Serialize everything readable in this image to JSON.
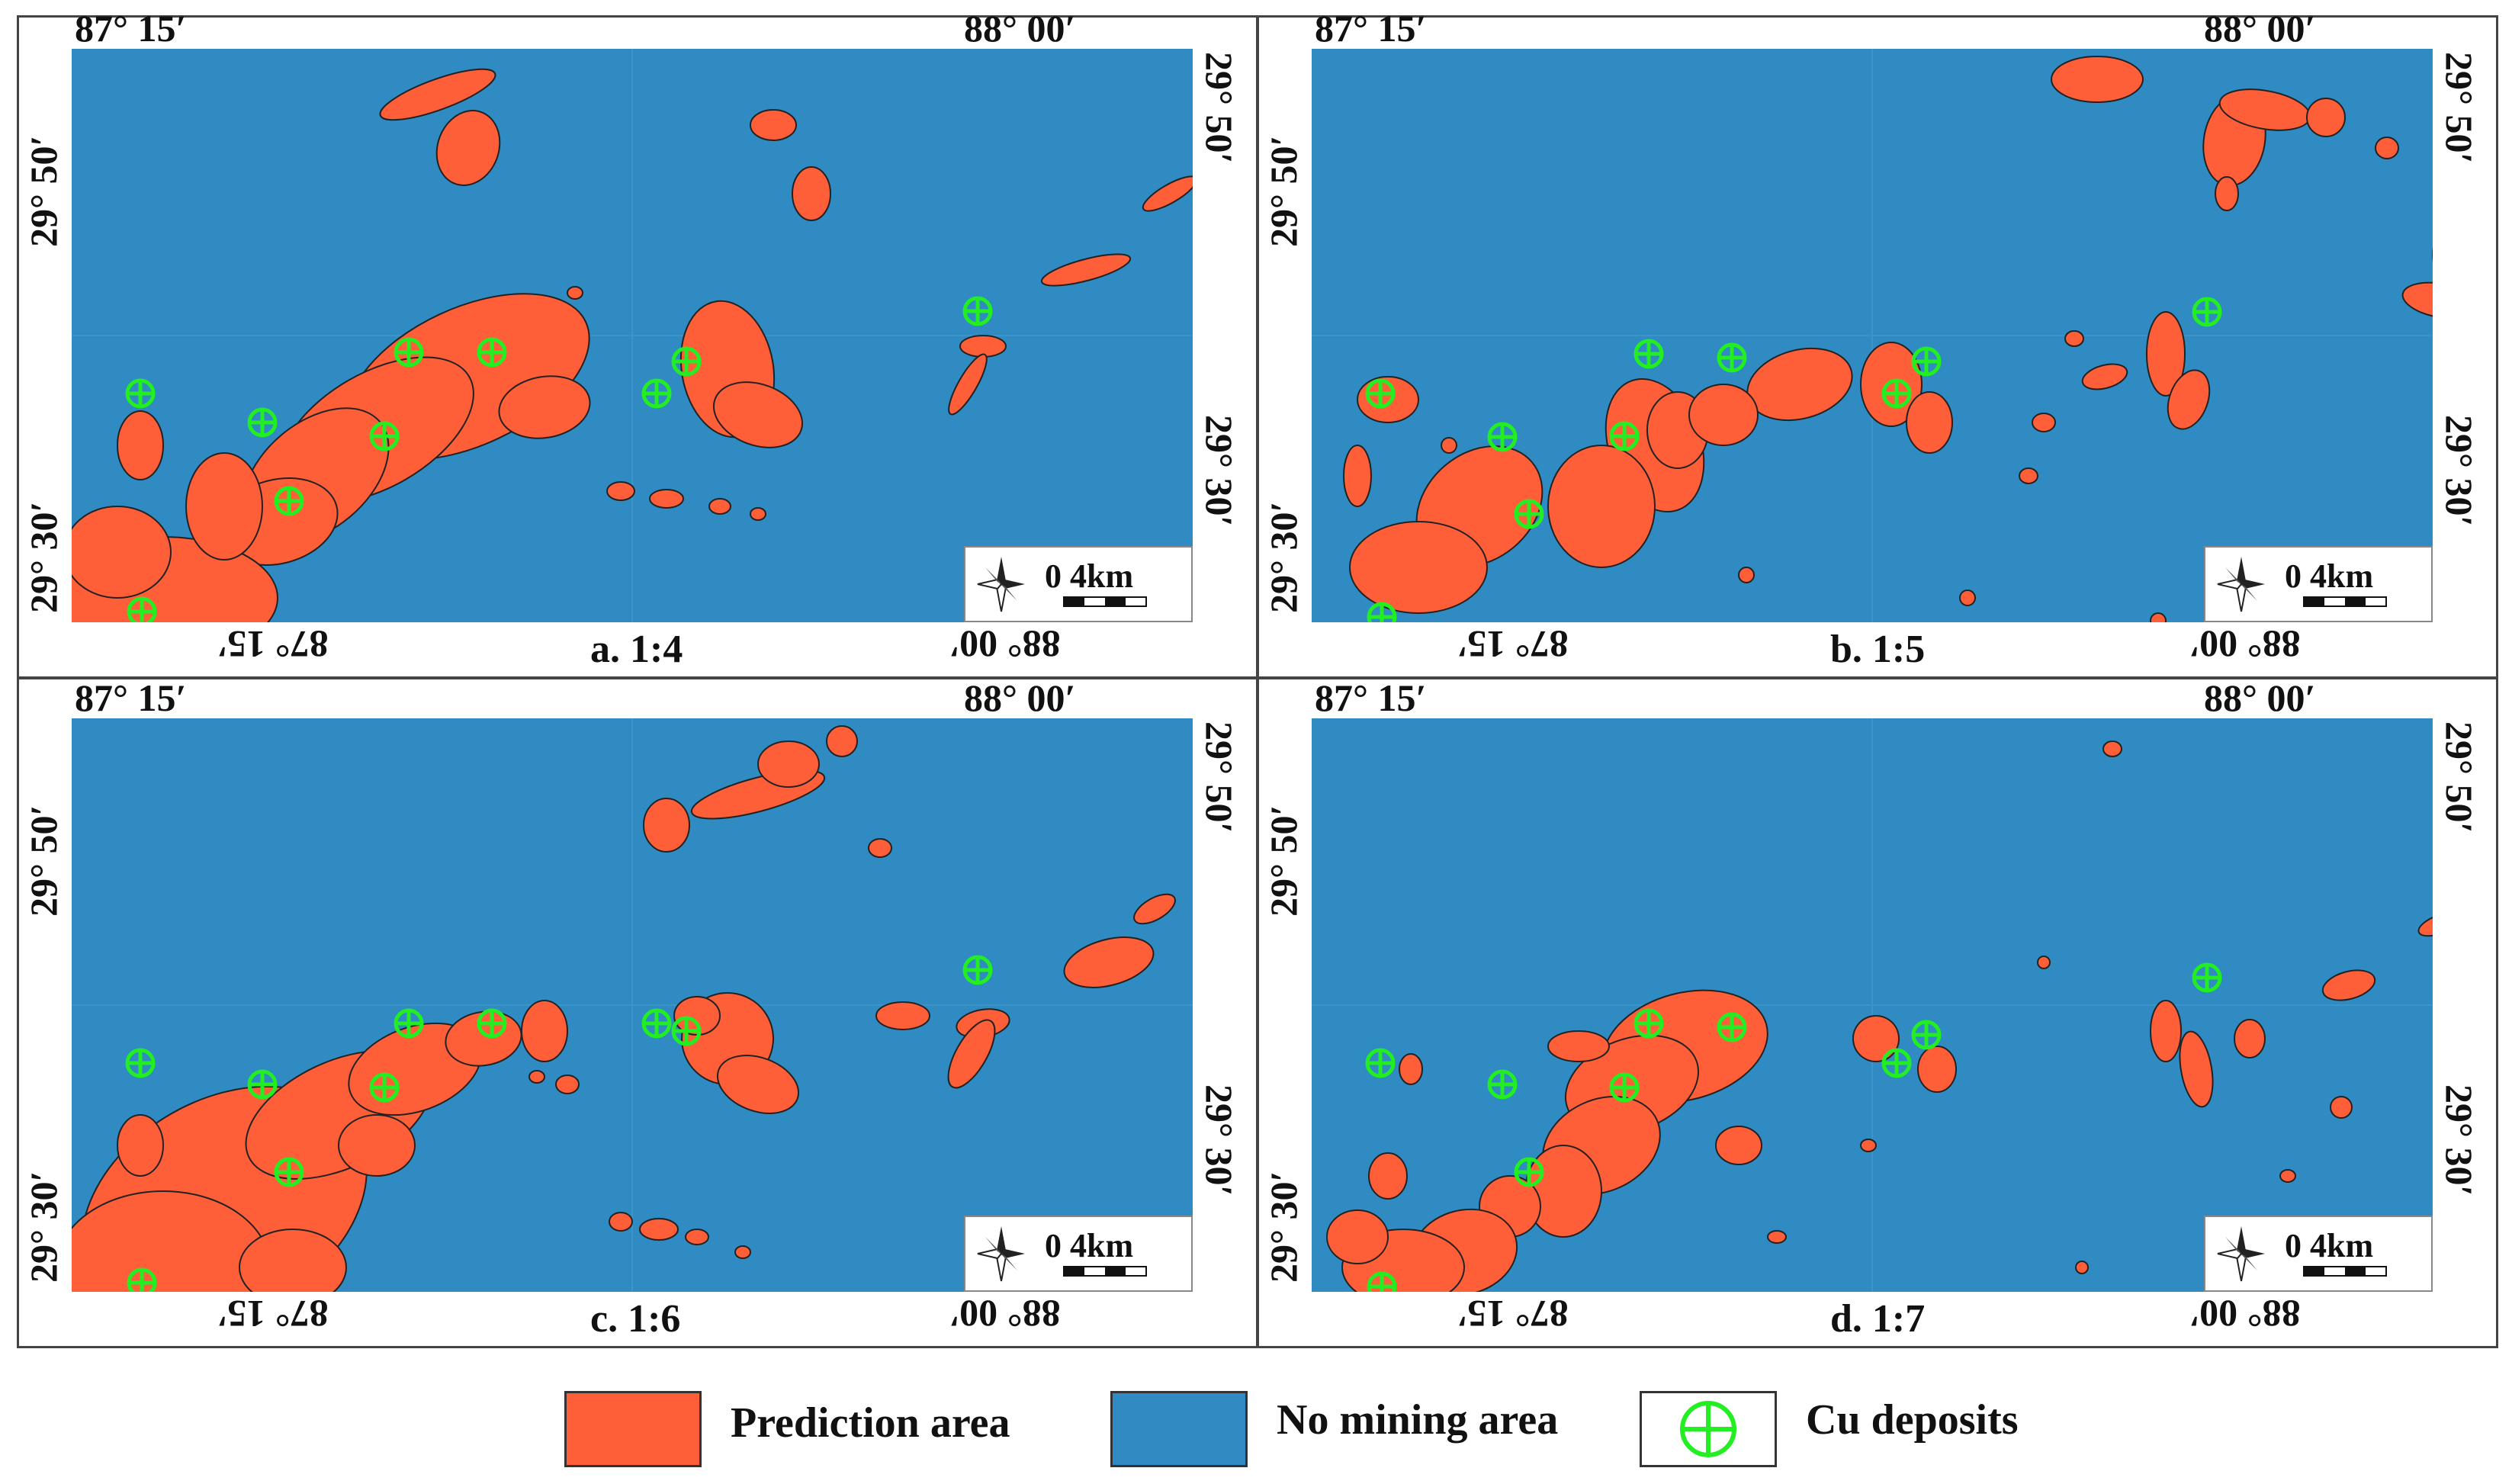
{
  "colors": {
    "prediction": "#ff5f38",
    "no_mining": "#2f8bc2",
    "deposit": "#22ee22",
    "outline": "#222222"
  },
  "coords": {
    "lon_left": "87° 15′",
    "lon_right": "88° 00′",
    "lat_top": "29° 50′",
    "lat_bottom": "29° 30′"
  },
  "scale_label": "0   4km",
  "panels": [
    {
      "caption": "a. 1:4"
    },
    {
      "caption": "b. 1:5"
    },
    {
      "caption": "c. 1:6"
    },
    {
      "caption": "d. 1:7"
    }
  ],
  "legend": [
    {
      "label": "Prediction area",
      "color_key": "prediction"
    },
    {
      "label": "No mining area",
      "color_key": "no_mining"
    },
    {
      "label": "Cu deposits",
      "icon": "cu-deposit-icon"
    }
  ]
}
